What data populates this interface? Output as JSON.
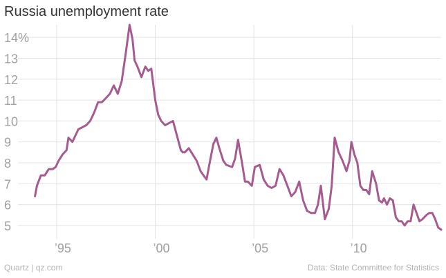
{
  "title": "Russia unemployment rate",
  "footer": {
    "left": "Quartz | qz.com",
    "right": "Data: State Committee for Statistics"
  },
  "colors": {
    "line": "#a55b8f",
    "grid": "#e3e3e3",
    "axis_text": "#a0a0a0",
    "title": "#333333",
    "footer": "#b3b3b3"
  },
  "chart_data": {
    "type": "line",
    "title": "Russia unemployment rate",
    "xlabel": "",
    "ylabel": "",
    "xlim": [
      1993.6,
      2014.5
    ],
    "ylim": [
      4.7,
      14.6
    ],
    "grid": true,
    "y_ticks": [
      {
        "value": 5,
        "label": "5"
      },
      {
        "value": 6,
        "label": "6"
      },
      {
        "value": 7,
        "label": "7"
      },
      {
        "value": 8,
        "label": "8"
      },
      {
        "value": 9,
        "label": "9"
      },
      {
        "value": 10,
        "label": "10"
      },
      {
        "value": 11,
        "label": "11"
      },
      {
        "value": 12,
        "label": "12"
      },
      {
        "value": 13,
        "label": "13"
      },
      {
        "value": 14,
        "label": "14%"
      }
    ],
    "x_ticks": [
      {
        "value": 1995,
        "label": "’95"
      },
      {
        "value": 2000,
        "label": "’00"
      },
      {
        "value": 2005,
        "label": "’05"
      },
      {
        "value": 2010,
        "label": "’10"
      }
    ],
    "series": [
      {
        "x": [
          1993.9,
          1994.0,
          1994.2,
          1994.4,
          1994.6,
          1994.8,
          1994.95,
          1995.1,
          1995.3,
          1995.5,
          1995.6,
          1995.8,
          1995.95,
          1996.1,
          1996.3,
          1996.5,
          1996.7,
          1996.9,
          1997.1,
          1997.3,
          1997.5,
          1997.7,
          1997.9,
          1998.1,
          1998.3,
          1998.5,
          1998.7,
          1998.85,
          1998.95,
          1999.1,
          1999.3,
          1999.5,
          1999.65,
          1999.8,
          2000.0,
          2000.15,
          2000.3,
          2000.5,
          2000.7,
          2000.9,
          2001.1,
          2001.3,
          2001.4,
          2001.5,
          2001.7,
          2001.9,
          2002.1,
          2002.3,
          2002.45,
          2002.6,
          2002.8,
          2002.95,
          2003.1,
          2003.25,
          2003.45,
          2003.6,
          2003.9,
          2004.05,
          2004.2,
          2004.4,
          2004.55,
          2004.7,
          2004.9,
          2005.05,
          2005.3,
          2005.5,
          2005.7,
          2005.9,
          2006.1,
          2006.3,
          2006.5,
          2006.7,
          2006.9,
          2007.1,
          2007.3,
          2007.5,
          2007.7,
          2007.9,
          2008.1,
          2008.25,
          2008.4,
          2008.6,
          2008.8,
          2008.95,
          2009.1,
          2009.3,
          2009.5,
          2009.7,
          2009.85,
          2009.95,
          2010.1,
          2010.25,
          2010.4,
          2010.55,
          2010.7,
          2010.85,
          2011.0,
          2011.2,
          2011.35,
          2011.5,
          2011.6,
          2011.75,
          2011.9,
          2012.05,
          2012.2,
          2012.35,
          2012.5,
          2012.65,
          2012.8,
          2012.95,
          2013.1,
          2013.25,
          2013.4,
          2013.55,
          2013.75,
          2013.9,
          2014.05,
          2014.2,
          2014.35,
          2014.5
        ],
        "values": [
          6.4,
          6.9,
          7.4,
          7.4,
          7.7,
          7.7,
          7.8,
          8.1,
          8.4,
          8.6,
          9.2,
          9.0,
          9.3,
          9.6,
          9.7,
          9.8,
          10.0,
          10.4,
          10.9,
          10.9,
          11.1,
          11.3,
          11.7,
          11.3,
          11.9,
          13.2,
          14.6,
          13.9,
          12.9,
          12.6,
          12.1,
          12.6,
          12.4,
          12.5,
          11.0,
          10.3,
          10.0,
          9.8,
          9.9,
          10.0,
          9.3,
          8.6,
          8.5,
          8.5,
          8.7,
          8.4,
          8.1,
          7.6,
          7.4,
          7.2,
          8.2,
          8.9,
          9.2,
          8.7,
          8.1,
          7.9,
          7.8,
          8.2,
          9.1,
          8.0,
          7.1,
          7.1,
          6.9,
          7.8,
          7.9,
          7.2,
          6.9,
          6.8,
          6.9,
          7.7,
          7.4,
          6.9,
          6.4,
          6.6,
          7.1,
          6.2,
          5.7,
          5.6,
          5.6,
          6.0,
          6.9,
          5.3,
          5.8,
          6.9,
          9.2,
          8.5,
          8.1,
          7.6,
          8.1,
          9.0,
          8.4,
          8.0,
          6.9,
          6.7,
          6.7,
          6.5,
          7.6,
          7.0,
          6.2,
          6.1,
          6.3,
          6.0,
          6.3,
          6.2,
          5.4,
          5.2,
          5.2,
          5.0,
          5.2,
          5.2,
          6.0,
          5.6,
          5.2,
          5.3,
          5.5,
          5.6,
          5.6,
          5.3,
          4.9,
          4.8
        ]
      }
    ]
  }
}
